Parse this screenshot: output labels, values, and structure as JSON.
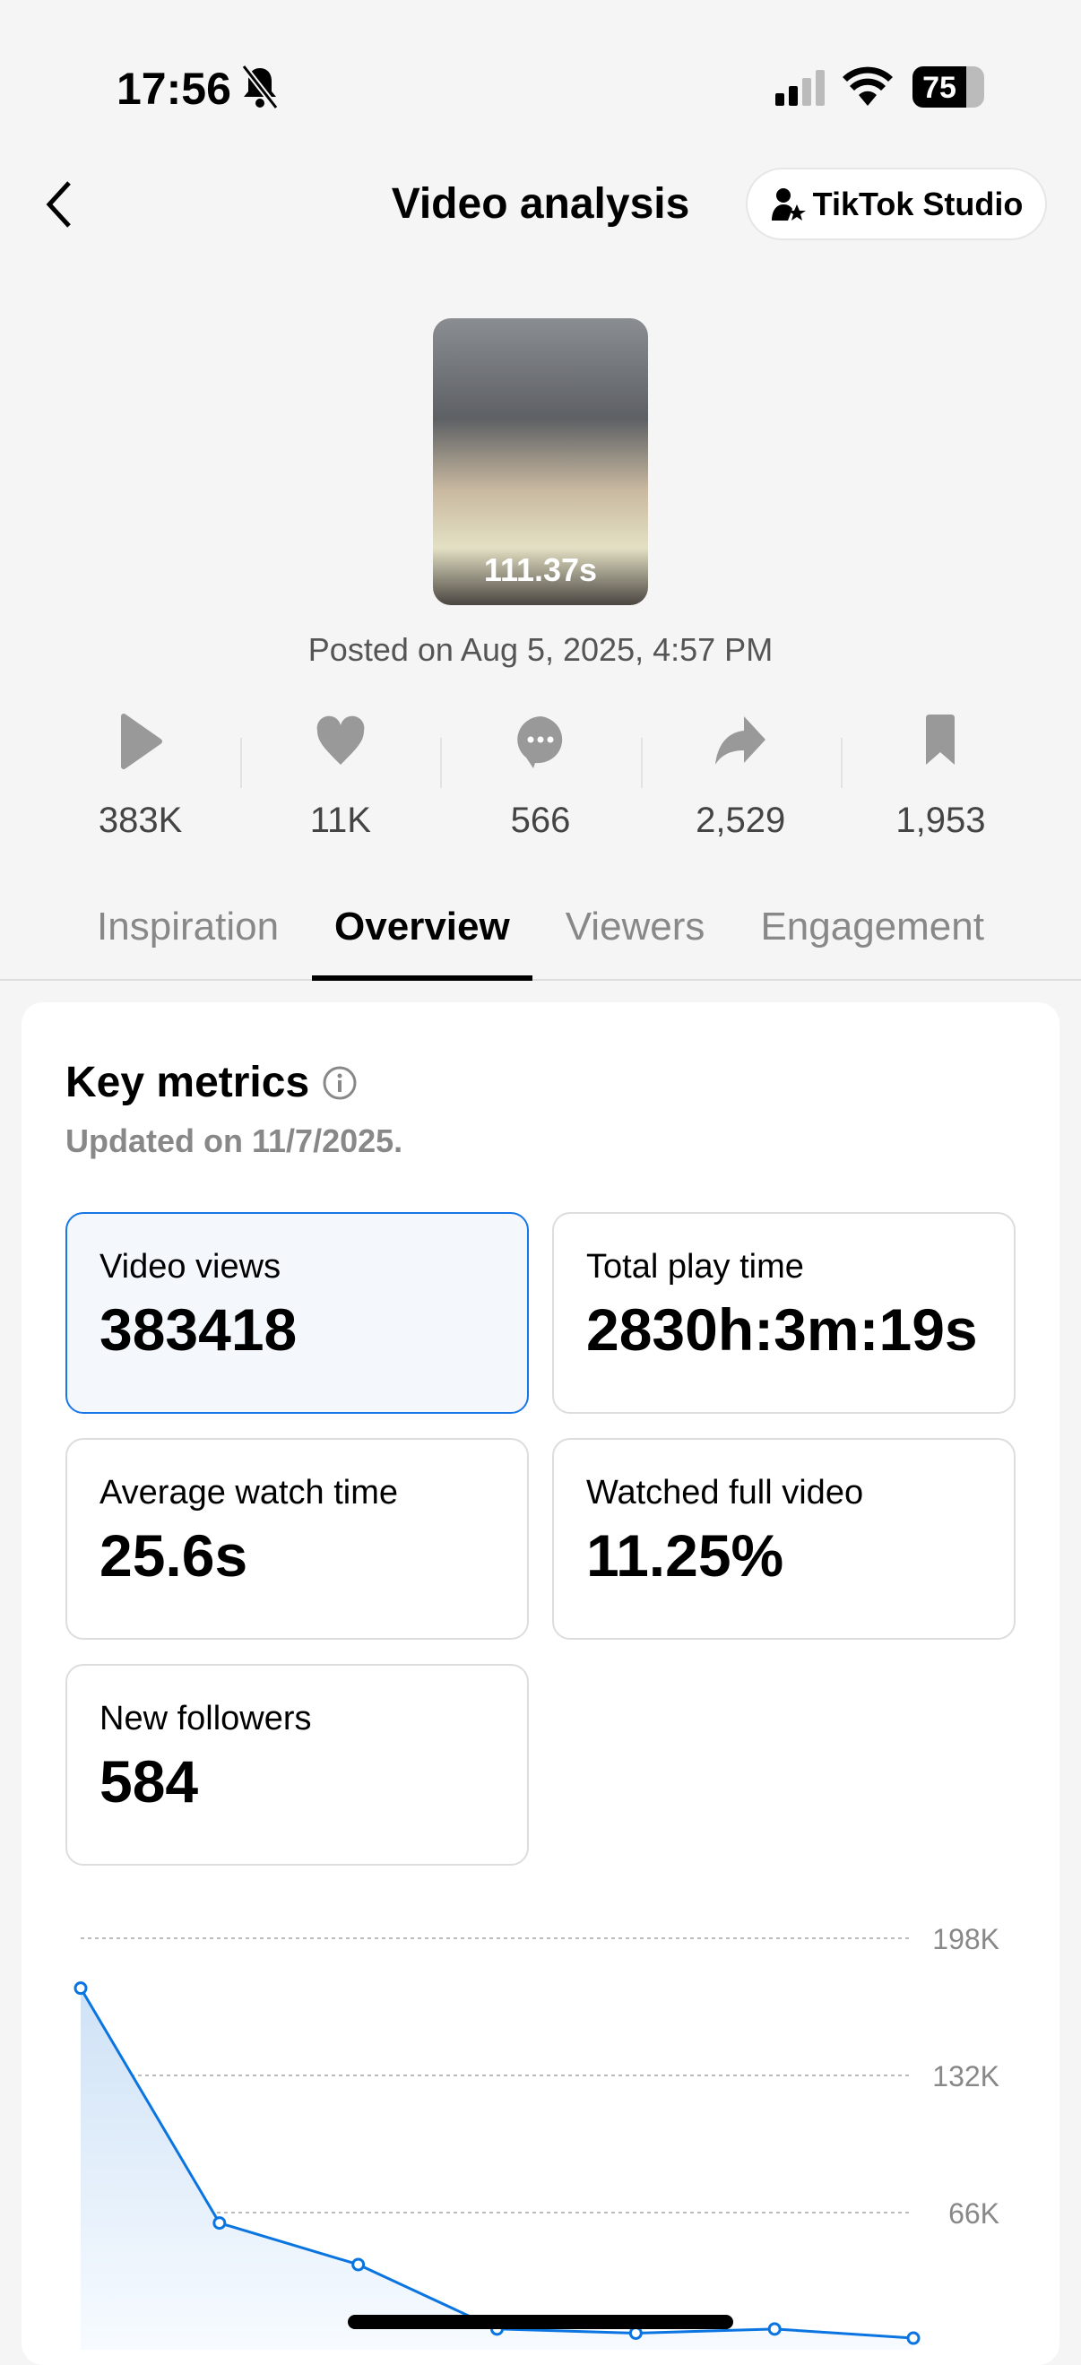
{
  "status_bar": {
    "time": "17:56",
    "battery": "75",
    "icons": [
      "bell-slash-icon",
      "signal-icon",
      "wifi-icon",
      "battery-icon"
    ]
  },
  "header": {
    "title": "Video analysis",
    "studio_button": "TikTok Studio",
    "back_icon": "chevron-left-icon"
  },
  "video": {
    "duration": "111.37s",
    "posted": "Posted on Aug 5, 2025, 4:57 PM"
  },
  "stats": [
    {
      "icon": "play-icon",
      "value": "383K"
    },
    {
      "icon": "heart-icon",
      "value": "11K"
    },
    {
      "icon": "comment-icon",
      "value": "566"
    },
    {
      "icon": "share-icon",
      "value": "2,529"
    },
    {
      "icon": "bookmark-icon",
      "value": "1,953"
    }
  ],
  "tabs": [
    {
      "label": "Inspiration"
    },
    {
      "label": "Overview",
      "active": true
    },
    {
      "label": "Viewers"
    },
    {
      "label": "Engagement"
    }
  ],
  "key_metrics": {
    "title": "Key metrics",
    "updated": "Updated on 11/7/2025.",
    "items": [
      {
        "label": "Video views",
        "value": "383418",
        "selected": true
      },
      {
        "label": "Total play time",
        "value": "2830h:3m:19s"
      },
      {
        "label": "Average watch time",
        "value": "25.6s"
      },
      {
        "label": "Watched full video",
        "value": "11.25%"
      },
      {
        "label": "New followers",
        "value": "584"
      }
    ]
  },
  "colors": {
    "accent": "#1877e6",
    "line": "#0a74e0"
  },
  "chart_data": {
    "type": "area",
    "x": [
      1,
      2,
      3,
      4,
      5,
      6,
      7
    ],
    "values": [
      174000,
      61000,
      41000,
      10000,
      8000,
      10000,
      5600
    ],
    "ylim": [
      0,
      198000
    ],
    "yticks": [
      "198K",
      "132K",
      "66K"
    ],
    "ytick_values": [
      198000,
      132000,
      66000
    ],
    "grid": true
  }
}
